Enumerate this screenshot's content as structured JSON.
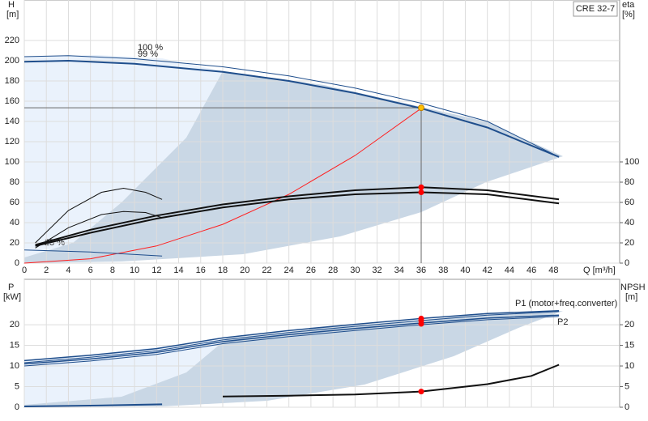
{
  "chart_data": [
    {
      "type": "line",
      "title": "CRE 32-7",
      "ylabel": "H",
      "ylabel_unit": "[m]",
      "y2label": "eta",
      "y2label_unit": "[%]",
      "xlabel": "Q [m³/h]",
      "xlim": [
        0,
        54
      ],
      "xticks": [
        0,
        2,
        4,
        6,
        8,
        10,
        12,
        14,
        16,
        18,
        20,
        22,
        24,
        26,
        28,
        30,
        32,
        34,
        36,
        38,
        40,
        42,
        44,
        46,
        48
      ],
      "ylim": [
        0,
        260
      ],
      "yticks": [
        0,
        20,
        40,
        60,
        80,
        100,
        120,
        140,
        160,
        180,
        200,
        220
      ],
      "y2lim": [
        0,
        260
      ],
      "y2ticks": [
        0,
        20,
        40,
        60,
        80,
        100
      ],
      "grid": true,
      "series": [
        {
          "name": "100 %",
          "color": "#1f4e8c",
          "linewidth": 1,
          "x": [
            0,
            4,
            10,
            18,
            24,
            30,
            36,
            42,
            48.5
          ],
          "values": [
            204,
            205,
            202,
            194,
            185,
            173,
            158,
            140,
            105
          ]
        },
        {
          "name": "99 %",
          "color": "#1f4e8c",
          "linewidth": 2,
          "x": [
            0,
            4,
            10,
            18,
            24,
            30,
            36,
            42,
            48.5
          ],
          "values": [
            199,
            200,
            197,
            189,
            180,
            168,
            153,
            134,
            105
          ]
        },
        {
          "color": "#ff2020",
          "linewidth": 1,
          "x": [
            0,
            6,
            12,
            18,
            24,
            30,
            36
          ],
          "values": [
            0,
            4.3,
            17,
            38.3,
            68,
            106.3,
            153
          ]
        },
        {
          "color": "#111111",
          "linewidth": 2,
          "axis": "y2",
          "x": [
            1,
            6,
            12,
            18,
            24,
            30,
            36,
            42,
            48.5
          ],
          "values": [
            18,
            33,
            47,
            58,
            66,
            72,
            75,
            72,
            63
          ]
        },
        {
          "color": "#111111",
          "linewidth": 2,
          "axis": "y2",
          "x": [
            1,
            6,
            12,
            18,
            24,
            30,
            36,
            42,
            48.5
          ],
          "values": [
            17,
            30,
            44,
            55,
            63,
            68,
            70,
            68,
            59
          ]
        },
        {
          "color": "#111111",
          "linewidth": 1,
          "axis": "y2",
          "x": [
            1,
            4,
            7,
            9,
            11,
            12.5
          ],
          "values": [
            20,
            52,
            70,
            74,
            70,
            63
          ]
        },
        {
          "color": "#111111",
          "linewidth": 1,
          "axis": "y2",
          "x": [
            1,
            4,
            7,
            9,
            11,
            12.5
          ],
          "values": [
            15,
            35,
            48,
            51,
            50,
            45
          ]
        },
        {
          "color": "#1f4e8c",
          "linewidth": 1,
          "x": [
            0,
            6,
            12.5
          ],
          "values": [
            13,
            11,
            7
          ]
        }
      ],
      "annotations": [
        "25 %"
      ],
      "markers": [
        {
          "x": 36,
          "y": 153.5,
          "color": "#ffc000"
        },
        {
          "x": 36,
          "y": 75,
          "color": "#ff0000"
        },
        {
          "x": 36,
          "y": 70,
          "color": "#ff0000"
        }
      ]
    },
    {
      "type": "line",
      "ylabel": "P",
      "ylabel_unit": "[kW]",
      "y2label": "NPSH",
      "y2label_unit": "[m]",
      "xlim": [
        0,
        54
      ],
      "xticks": [
        0,
        2,
        4,
        6,
        8,
        10,
        12,
        14,
        16,
        18,
        20,
        22,
        24,
        26,
        28,
        30,
        32,
        34,
        36,
        38,
        40,
        42,
        44,
        46,
        48
      ],
      "ylim": [
        0,
        31
      ],
      "yticks": [
        0,
        5,
        10,
        15,
        20
      ],
      "y2lim": [
        0,
        31
      ],
      "y2ticks": [
        0,
        5,
        10,
        15,
        20
      ],
      "grid": true,
      "series": [
        {
          "name": "P1 (motor+freq.converter)",
          "color": "#1f4e8c",
          "linewidth": 1.5,
          "x": [
            0,
            6,
            12,
            18,
            24,
            30,
            36,
            42,
            48.5
          ],
          "values": [
            11.3,
            12.6,
            14.2,
            16.8,
            18.6,
            20.1,
            21.5,
            22.7,
            23.4
          ]
        },
        {
          "color": "#1f4e8c",
          "linewidth": 1,
          "x": [
            0,
            6,
            12,
            18,
            24,
            30,
            36,
            42,
            48.5
          ],
          "values": [
            10.8,
            12.1,
            13.7,
            16.3,
            18.1,
            19.6,
            21.0,
            22.3,
            23.2
          ]
        },
        {
          "name": "P2",
          "color": "#1f4e8c",
          "linewidth": 1.5,
          "x": [
            0,
            6,
            12,
            18,
            24,
            30,
            36,
            42,
            48.5
          ],
          "values": [
            10.5,
            11.7,
            13.3,
            15.9,
            17.6,
            19.1,
            20.4,
            21.6,
            22.3
          ]
        },
        {
          "color": "#1f4e8c",
          "linewidth": 1,
          "x": [
            0,
            6,
            12,
            18,
            24,
            30,
            36,
            42,
            48.5
          ],
          "values": [
            10.0,
            11.2,
            12.8,
            15.4,
            17.1,
            18.6,
            20.0,
            21.2,
            22.0
          ]
        },
        {
          "color": "#111111",
          "linewidth": 2,
          "axis": "y2",
          "x": [
            18,
            24,
            30,
            36,
            38,
            42,
            46,
            48.5
          ],
          "values": [
            2.6,
            2.8,
            3.1,
            3.8,
            4.4,
            5.6,
            7.6,
            10.3
          ]
        },
        {
          "color": "#1f4e8c",
          "linewidth": 2,
          "x": [
            0,
            6,
            12.5
          ],
          "values": [
            0.2,
            0.4,
            0.7
          ]
        }
      ],
      "markers": [
        {
          "x": 36,
          "y": 21.5,
          "color": "#ff0000"
        },
        {
          "x": 36,
          "y": 21,
          "color": "#ff0000"
        },
        {
          "x": 36,
          "y": 20.2,
          "color": "#ff0000"
        },
        {
          "x": 36,
          "y": 3.8,
          "color": "#ff0000"
        }
      ]
    }
  ]
}
